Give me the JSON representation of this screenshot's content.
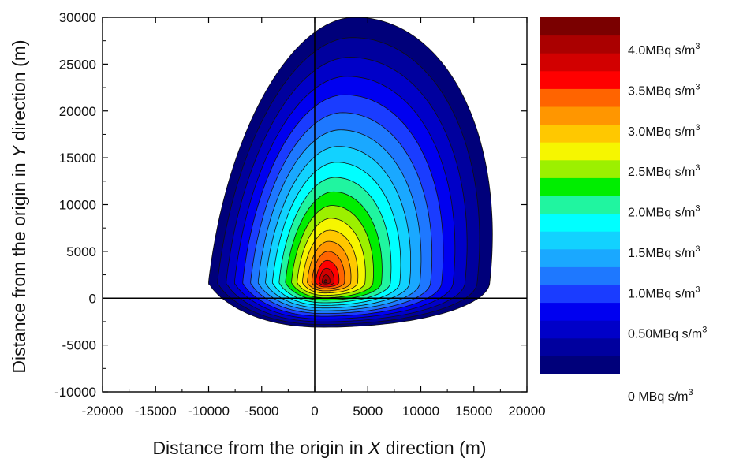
{
  "chart_data": {
    "type": "heatmap",
    "subtype": "filled-contour",
    "xlabel": {
      "text": "Distance from the origin in ",
      "axis": "X",
      "tail": " direction (m)"
    },
    "ylabel": {
      "text": "Distance from the origin in ",
      "axis": "Y",
      "tail": " direction (m)"
    },
    "xlim": [
      -20000,
      20000
    ],
    "ylim": [
      -10000,
      30000
    ],
    "xticks": [
      -20000,
      -15000,
      -10000,
      -5000,
      0,
      5000,
      10000,
      15000,
      20000
    ],
    "yticks": [
      -10000,
      -5000,
      0,
      5000,
      10000,
      15000,
      20000,
      25000,
      30000
    ],
    "reference_lines": {
      "x": 0,
      "y": 0
    },
    "colorbar": {
      "colors": [
        "#00007a",
        "#00009e",
        "#0000c8",
        "#0000f0",
        "#1a3cff",
        "#1e78ff",
        "#1aa8ff",
        "#12d2ff",
        "#00ffff",
        "#20f5a0",
        "#00ee00",
        "#9cf000",
        "#f6f600",
        "#ffc800",
        "#ff9600",
        "#ff6400",
        "#ff0000",
        "#d20000",
        "#aa0000",
        "#7a0000"
      ],
      "labels": [
        {
          "value": 0.0,
          "text": "0 MBq s/m",
          "sup": "3"
        },
        {
          "value": 0.5,
          "text": "0.50MBq s/m",
          "sup": "3"
        },
        {
          "value": 1.0,
          "text": "1.0MBq s/m",
          "sup": "3"
        },
        {
          "value": 1.5,
          "text": "1.5MBq s/m",
          "sup": "3"
        },
        {
          "value": 2.0,
          "text": "2.0MBq s/m",
          "sup": "3"
        },
        {
          "value": 2.5,
          "text": "2.5MBq s/m",
          "sup": "3"
        },
        {
          "value": 3.0,
          "text": "3.0MBq s/m",
          "sup": "3"
        },
        {
          "value": 3.5,
          "text": "3.5MBq s/m",
          "sup": "3"
        },
        {
          "value": 4.0,
          "text": "4.0MBq s/m",
          "sup": "3"
        }
      ],
      "range": [
        0,
        4.4
      ],
      "unit": "MBq s/m3"
    },
    "field": {
      "peak_location": [
        1000,
        1700
      ],
      "peak_value": 4.1,
      "outer_contour_extent": {
        "x": [
          -10000,
          16500
        ],
        "y": [
          -4700,
          30000
        ]
      },
      "level_step": 0.2,
      "contour_lines": true
    }
  }
}
